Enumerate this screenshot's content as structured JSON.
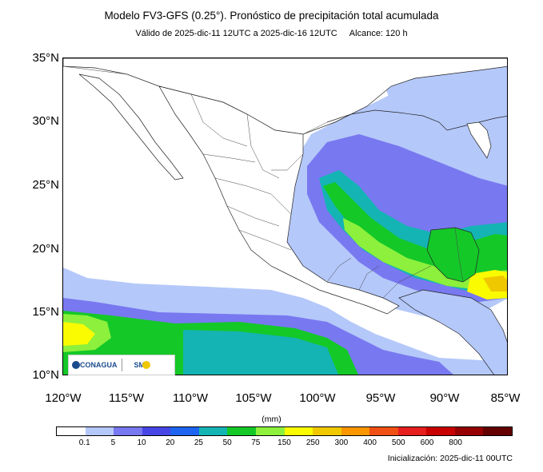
{
  "header": {
    "title": "Modelo FV3-GFS (0.25°). Pronóstico de precipitación total acumulada",
    "validity": "Válido de 2025-dic-11 12UTC a 2025-dic-16 12UTC",
    "range": "Alcance: 120 h"
  },
  "axes": {
    "lat_labels": [
      "35°N",
      "30°N",
      "25°N",
      "20°N",
      "15°N",
      "10°N"
    ],
    "lon_labels": [
      "120°W",
      "115°W",
      "110°W",
      "105°W",
      "100°W",
      "95°W",
      "90°W",
      "85°W"
    ],
    "lat_range": [
      10,
      35
    ],
    "lon_range": [
      -120,
      -85
    ]
  },
  "legend": {
    "unit": "(mm)",
    "thresholds": [
      "0.1",
      "5",
      "10",
      "20",
      "25",
      "50",
      "75",
      "150",
      "250",
      "300",
      "400",
      "500",
      "600",
      "800"
    ],
    "colors": [
      "#ffffff",
      "#b4c8fa",
      "#7878f0",
      "#4646e6",
      "#1e64f0",
      "#14b4b4",
      "#14c828",
      "#8cf03c",
      "#fafa00",
      "#f0c800",
      "#fa9600",
      "#f05014",
      "#e61e1e",
      "#c80000",
      "#960000",
      "#640000"
    ]
  },
  "logos": {
    "conagua": "CONAGUA",
    "smn": "SMN"
  },
  "footer": {
    "init": "Inicialización: 2025-dic-11 00UTC"
  }
}
